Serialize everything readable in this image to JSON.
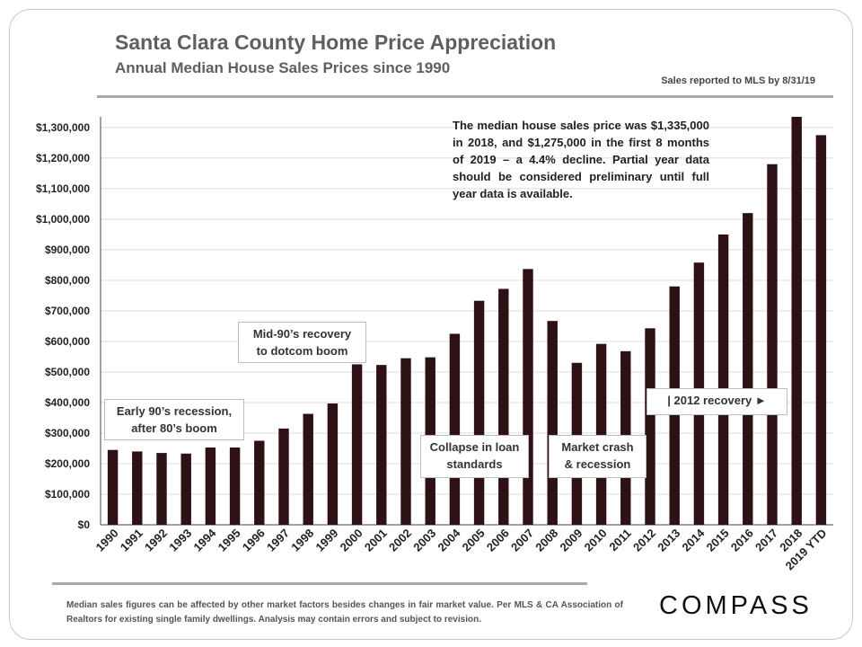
{
  "header": {
    "title": "Santa Clara County Home Price Appreciation",
    "subtitle": "Annual Median House Sales Prices since 1990",
    "source_note": "Sales reported to MLS by 8/31/19"
  },
  "chart_data": {
    "type": "bar",
    "categories": [
      "1990",
      "1991",
      "1992",
      "1993",
      "1994",
      "1995",
      "1996",
      "1997",
      "1998",
      "1999",
      "2000",
      "2001",
      "2002",
      "2003",
      "2004",
      "2005",
      "2006",
      "2007",
      "2008",
      "2009",
      "2010",
      "2011",
      "2012",
      "2013",
      "2014",
      "2015",
      "2016",
      "2017",
      "2018",
      "2019 YTD"
    ],
    "values": [
      245000,
      240000,
      235000,
      233000,
      253000,
      253000,
      275000,
      315000,
      363000,
      397000,
      525000,
      523000,
      545000,
      548000,
      625000,
      733000,
      772000,
      837000,
      667000,
      530000,
      592000,
      568000,
      643000,
      780000,
      858000,
      950000,
      1020000,
      1180000,
      1335000,
      1275000
    ],
    "title": "Santa Clara County Home Price Appreciation",
    "subtitle": "Annual Median House Sales Prices since 1990",
    "xlabel": "",
    "ylabel": "",
    "ylim": [
      0,
      1300000
    ],
    "ytick_step": 100000,
    "yticks": [
      "$0",
      "$100,000",
      "$200,000",
      "$300,000",
      "$400,000",
      "$500,000",
      "$600,000",
      "$700,000",
      "$800,000",
      "$900,000",
      "$1,000,000",
      "$1,100,000",
      "$1,200,000",
      "$1,300,000"
    ],
    "grid": true,
    "bar_color": "#2e1114",
    "grid_color": "#dcdcdc",
    "annotations": [
      "Early 90’s recession,\nafter 80’s boom",
      "Mid-90’s recovery\nto dotcom boom",
      "Collapse in loan\nstandards",
      "Market crash\n& recession",
      "| 2012 recovery ►"
    ],
    "callout": "The median house sales price was $1,335,000 in 2018, and $1,275,000 in the first 8 months of 2019 – a 4.4% decline. Partial year data should be considered preliminary until full year data is available."
  },
  "footer": {
    "note": "Median sales figures can be affected by other market factors besides changes in fair market value. Per MLS & CA Association of Realtors for existing single family dwellings. Analysis may contain errors and subject to revision.",
    "logo": "COMPASS"
  }
}
